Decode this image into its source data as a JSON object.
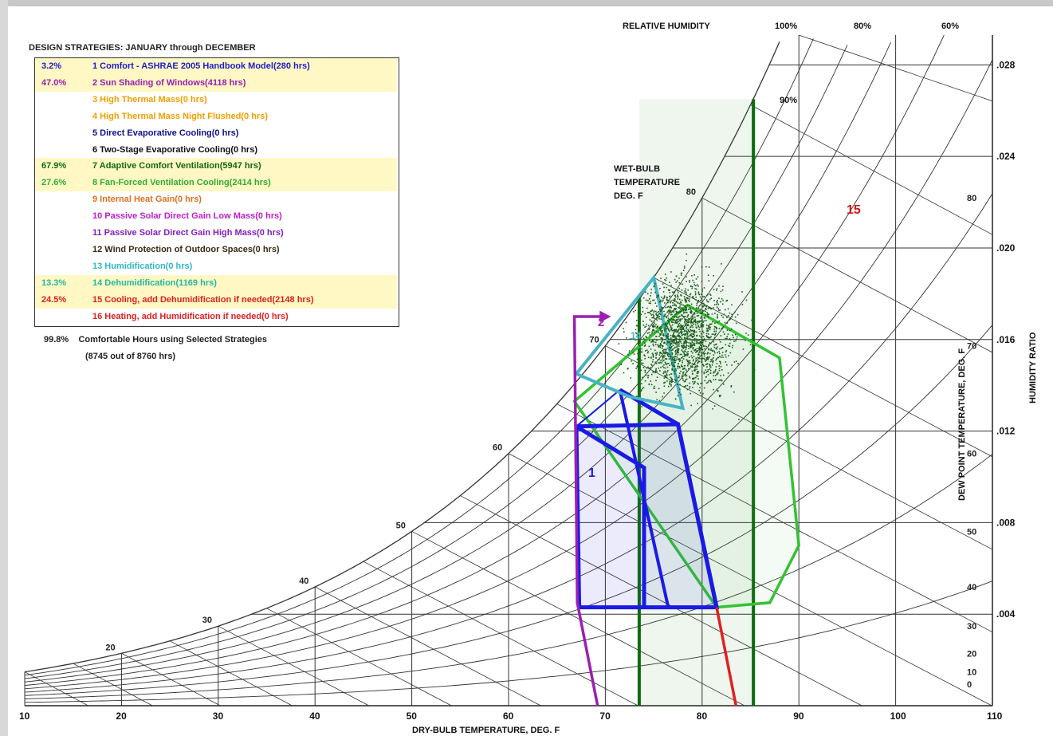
{
  "legend": {
    "title": "DESIGN STRATEGIES:  JANUARY through DECEMBER",
    "items": [
      {
        "pct": "3.2%",
        "text": "1  Comfort - ASHRAE 2005 Handbook Model(280 hrs)",
        "color": "#1c1ccc",
        "highlight": true
      },
      {
        "pct": "47.0%",
        "text": "2  Sun Shading of Windows(4118 hrs)",
        "color": "#9b1fb0",
        "highlight": true
      },
      {
        "pct": "",
        "text": "3  High Thermal Mass(0 hrs)",
        "color": "#f0a000",
        "highlight": false
      },
      {
        "pct": "",
        "text": "4  High Thermal Mass Night Flushed(0 hrs)",
        "color": "#f0a000",
        "highlight": false
      },
      {
        "pct": "",
        "text": "5  Direct Evaporative Cooling(0 hrs)",
        "color": "#10108c",
        "highlight": false
      },
      {
        "pct": "",
        "text": "6  Two-Stage Evaporative Cooling(0 hrs)",
        "color": "#111111",
        "highlight": false
      },
      {
        "pct": "67.9%",
        "text": "7  Adaptive Comfort Ventilation(5947 hrs)",
        "color": "#116a11",
        "highlight": true
      },
      {
        "pct": "27.6%",
        "text": "8  Fan-Forced Ventilation Cooling(2414 hrs)",
        "color": "#2fae2f",
        "highlight": true
      },
      {
        "pct": "",
        "text": "9  Internal Heat Gain(0 hrs)",
        "color": "#e07020",
        "highlight": false
      },
      {
        "pct": "",
        "text": "10  Passive Solar Direct Gain Low Mass(0 hrs)",
        "color": "#c020d0",
        "highlight": false
      },
      {
        "pct": "",
        "text": "11  Passive Solar Direct Gain High Mass(0 hrs)",
        "color": "#8020c0",
        "highlight": false
      },
      {
        "pct": "",
        "text": "12  Wind Protection of Outdoor Spaces(0 hrs)",
        "color": "#3a2a14",
        "highlight": false
      },
      {
        "pct": "",
        "text": "13  Humidification(0 hrs)",
        "color": "#30b8c8",
        "highlight": false
      },
      {
        "pct": "13.3%",
        "text": "14  Dehumidification(1169 hrs)",
        "color": "#20b8a0",
        "highlight": true
      },
      {
        "pct": "24.5%",
        "text": "15  Cooling, add Dehumidification if needed(2148 hrs)",
        "color": "#e02020",
        "highlight": true
      },
      {
        "pct": "",
        "text": "16  Heating, add Humidification if needed(0 hrs)",
        "color": "#e02020",
        "highlight": false
      }
    ],
    "comfort_pct": "99.8%",
    "comfort_text": "Comfortable Hours using Selected Strategies",
    "comfort_detail": "(8745 out of 8760 hrs)"
  },
  "chart_data": {
    "type": "scatter",
    "title": "",
    "xlabel": "DRY-BULB TEMPERATURE, DEG. F",
    "ylabel": "HUMIDITY RATIO",
    "ylabel2": "DEW POINT TEMPERATURE, DEG. F",
    "xlim": [
      10,
      110
    ],
    "ylim": [
      0.0,
      0.0293
    ],
    "x_ticks": [
      "10",
      "20",
      "30",
      "40",
      "50",
      "60",
      "70",
      "80",
      "90",
      "100",
      "110"
    ],
    "w_ticks": [
      ".004",
      ".008",
      ".012",
      ".016",
      ".020",
      ".024",
      ".028"
    ],
    "dewpoint_ticks": [
      "0",
      "10",
      "20",
      "30",
      "40",
      "50",
      "60",
      "70",
      "80"
    ],
    "wetbulb_ticks": [
      "20",
      "30",
      "40",
      "50",
      "60",
      "70",
      "80"
    ],
    "rh_header": "RELATIVE HUMIDITY",
    "rh_labels": [
      "100%",
      "80%",
      "60%"
    ],
    "rh_inner_label": "90%",
    "wetbulb_label": [
      "WET-BULB",
      "TEMPERATURE",
      "DEG. F"
    ],
    "zone_labels": [
      "1",
      "2",
      "14",
      "15"
    ],
    "colors": {
      "zone1": "#1a1ae6",
      "zone2": "#9b1fb0",
      "zone7": "#0e6b0e",
      "zone8": "#33c233",
      "zone14": "#49b3c5",
      "zone15": "#e02020",
      "points": "#1b5e1b",
      "grid": "#333333"
    },
    "series": [
      {
        "name": "1  Comfort - ASHRAE 2005 Handbook Model",
        "polygon": [
          [
            67,
            0.0122
          ],
          [
            74,
            0.0104
          ],
          [
            75.5,
            0.0043
          ],
          [
            67.3,
            0.0043
          ]
        ]
      },
      {
        "name": "2  Sun Shading of Windows",
        "polyline": [
          [
            69.2,
            0.0
          ],
          [
            67.1,
            0.0045
          ],
          [
            66.8,
            0.017
          ],
          [
            69.5,
            0.017
          ]
        ]
      },
      {
        "name": "7  Adaptive Comfort Ventilation",
        "polyline": [
          [
            73.5,
            0.0
          ],
          [
            73.5,
            0.0265
          ],
          [
            85.3,
            0.0265
          ],
          [
            85.3,
            0.0
          ]
        ]
      },
      {
        "name": "8  Fan-Forced Ventilation Cooling",
        "polygon": [
          [
            66.8,
            0.0133
          ],
          [
            78.5,
            0.0175
          ],
          [
            88,
            0.0152
          ],
          [
            90,
            0.007
          ],
          [
            87,
            0.0045
          ],
          [
            81.5,
            0.0043
          ]
        ]
      },
      {
        "name": "14  Dehumidification",
        "polygon": [
          [
            67.0,
            0.0145
          ],
          [
            75.0,
            0.0187
          ],
          [
            78.0,
            0.013
          ],
          [
            72.5,
            0.0135
          ]
        ]
      },
      {
        "name": "15  Cooling, add Dehumidification if needed",
        "polyline": [
          [
            81.5,
            0.0043
          ],
          [
            83.5,
            0.0
          ]
        ]
      }
    ]
  }
}
